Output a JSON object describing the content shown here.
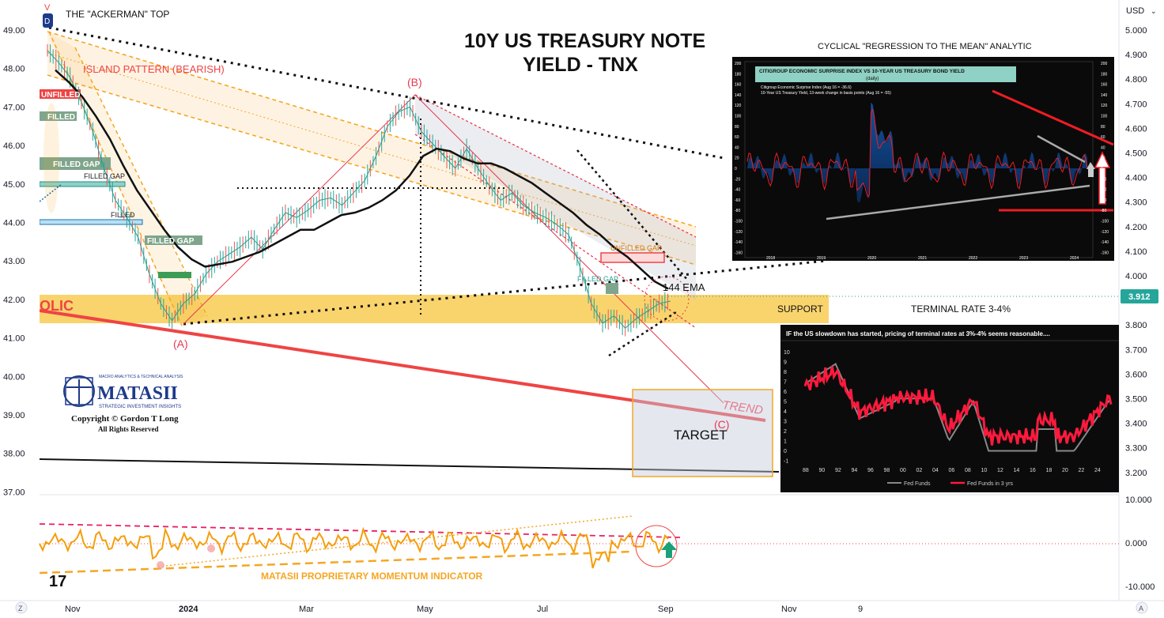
{
  "toolbar": {
    "currency": "USD",
    "price_tag": "3.912",
    "bottom_left_icon": "Z",
    "bottom_right_icon": "A"
  },
  "main": {
    "title_line1": "10Y US TREASURY NOTE",
    "title_line2": "YIELD - TNX",
    "ackerman_label": "THE \"ACKERMAN\" TOP",
    "island_label": "ISLAND PATTERN (BEARISH)",
    "wave_a": "(A)",
    "wave_b": "(B)",
    "wave_c": "(C)",
    "support_label": "SUPPORT",
    "terminal_label": "TERMINAL RATE 3-4%",
    "trend_label": "TREND",
    "target_label": "TARGET",
    "ema_label": "144 EMA",
    "gap_unfilled_left": "UNFILLED",
    "gap_filled_1": "FILLED",
    "gap_filled_2": "FILLED GAP",
    "gap_filled_3": "FILLED GAP",
    "gap_filled_4": "FILLED",
    "gap_filled_5": "FILLED GAP",
    "gap_unfilled_right": "UNFILLED GAP",
    "gap_filled_right": "FILLED GAP",
    "olic_fragment": "OLIC",
    "momentum_label": "MATASII PROPRIETARY MOMENTUM INDICATOR",
    "cyclical_label": "CYCLICAL \"REGRESSION TO THE MEAN\" ANALYTIC",
    "logo_top": "MACRO ANALYTICS & TECHNICAL ANALYSIS",
    "logo_name": "MATASII",
    "logo_sub": "STRATEGIC INVESTMENT INSIGHTS",
    "copyright": "Copyright © Gordon T Long",
    "rights": "All Rights Reserved",
    "tv_logo": "17"
  },
  "inset_citi": {
    "title": "CITIGROUP ECONOMIC SURPRISE INDEX VS 10-YEAR US TREASURY BOND YIELD",
    "subtitle": "(daily)",
    "legend1": "Citigroup Economic Surprise Index (Aug 16 = -36.6)",
    "legend2": "10-Year US Treasury Yield, 13-week change in basis points (Aug 16 = -55)",
    "years": [
      "2018",
      "2019",
      "2020",
      "2021",
      "2022",
      "2023",
      "2024"
    ],
    "left_ticks": [
      "200",
      "180",
      "160",
      "140",
      "120",
      "100",
      "80",
      "60",
      "40",
      "20",
      "0",
      "-20",
      "-40",
      "-60",
      "-80",
      "-100",
      "-120",
      "-140",
      "-160"
    ],
    "right_ticks": [
      "200",
      "180",
      "160",
      "140",
      "120",
      "100",
      "80",
      "60",
      "40",
      "20",
      "0",
      "-20",
      "-40",
      "-60",
      "-80",
      "-100",
      "-120",
      "-140",
      "-160"
    ]
  },
  "inset_fed": {
    "title": "IF the US slowdown has started, pricing of terminal rates at 3%-4% seems reasonable....",
    "y_ticks": [
      "10",
      "9",
      "8",
      "7",
      "6",
      "5",
      "4",
      "3",
      "2",
      "1",
      "0",
      "-1"
    ],
    "x_ticks": [
      "88",
      "90",
      "92",
      "94",
      "96",
      "98",
      "00",
      "02",
      "04",
      "06",
      "08",
      "10",
      "12",
      "14",
      "16",
      "18",
      "20",
      "22",
      "24"
    ],
    "legend1": "Fed Funds",
    "legend2": "Fed Funds in 3 yrs"
  },
  "chart_data": {
    "type": "line",
    "title": "10Y US TREASURY NOTE YIELD - TNX",
    "x_ticks": [
      "Nov",
      "2024",
      "Mar",
      "May",
      "Jul",
      "Sep",
      "Nov",
      "9"
    ],
    "left_axis_ticks": [
      "49.00",
      "48.00",
      "47.00",
      "46.00",
      "45.00",
      "44.00",
      "43.00",
      "42.00",
      "41.00",
      "40.00",
      "39.00",
      "38.00",
      "37.00"
    ],
    "right_axis_ticks": [
      "5.000",
      "4.900",
      "4.800",
      "4.700",
      "4.600",
      "4.500",
      "4.400",
      "4.300",
      "4.200",
      "4.100",
      "4.000",
      "3.900",
      "3.800",
      "3.700",
      "3.600",
      "3.500",
      "3.400",
      "3.300",
      "3.200"
    ],
    "osc_ticks": [
      "10.000",
      "0.000",
      "-10.000"
    ],
    "ylim": [
      3.17,
      5.0
    ],
    "last_value": 3.912,
    "series": [
      {
        "name": "TNX",
        "values": [
          4.93,
          4.88,
          4.82,
          4.72,
          4.6,
          4.45,
          4.32,
          4.25,
          4.17,
          4.02,
          3.9,
          3.83,
          3.9,
          3.94,
          4.02,
          4.07,
          4.1,
          4.13,
          4.17,
          4.12,
          4.2,
          4.27,
          4.25,
          4.28,
          4.32,
          4.33,
          4.3,
          4.35,
          4.4,
          4.5,
          4.62,
          4.68,
          4.7,
          4.6,
          4.55,
          4.5,
          4.45,
          4.53,
          4.45,
          4.38,
          4.32,
          4.35,
          4.3,
          4.27,
          4.25,
          4.22,
          4.18,
          4.05,
          3.9,
          3.82,
          3.85,
          3.8,
          3.84,
          3.87,
          3.9,
          3.91
        ]
      },
      {
        "name": "144 EMA",
        "values": [
          4.85,
          4.8,
          4.74,
          4.66,
          4.57,
          4.46,
          4.36,
          4.28,
          4.2,
          4.13,
          4.08,
          4.05,
          4.06,
          4.07,
          4.09,
          4.11,
          4.14,
          4.17,
          4.2,
          4.2,
          4.23,
          4.26,
          4.27,
          4.29,
          4.32,
          4.36,
          4.42,
          4.5,
          4.53,
          4.52,
          4.49,
          4.47,
          4.47,
          4.45,
          4.42,
          4.39,
          4.35,
          4.31,
          4.27,
          4.22,
          4.18,
          4.13,
          4.09,
          4.04,
          3.99,
          3.96
        ]
      }
    ]
  }
}
